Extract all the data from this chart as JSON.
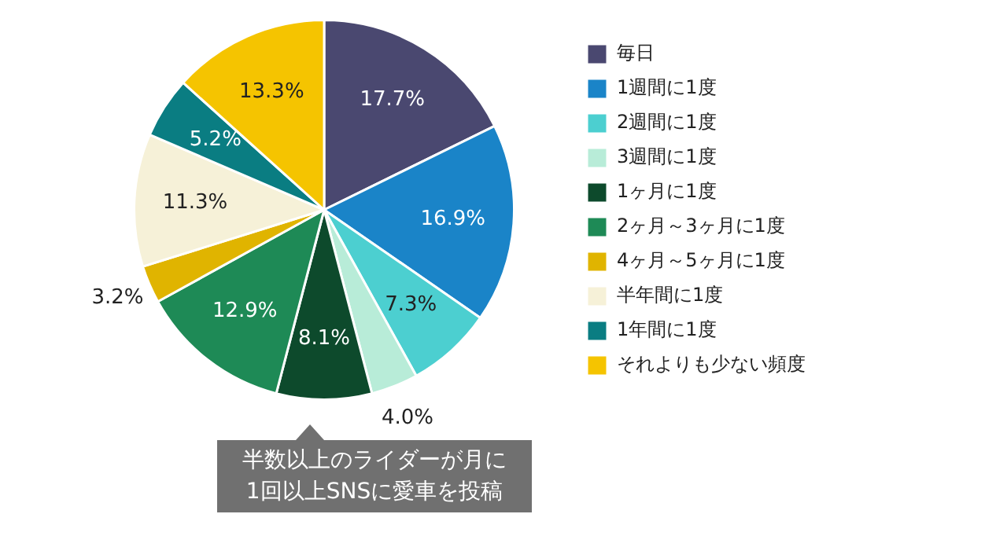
{
  "chart_data": {
    "type": "pie",
    "categories": [
      "毎日",
      "1週間に1度",
      "2週間に1度",
      "3週間に1度",
      "1ヶ月に1度",
      "2ヶ月～3ヶ月に1度",
      "4ヶ月～5ヶ月に1度",
      "半年間に1度",
      "1年間に1度",
      "それよりも少ない頻度"
    ],
    "values": [
      17.7,
      16.9,
      7.3,
      4.0,
      8.1,
      12.9,
      3.2,
      11.3,
      5.2,
      13.3
    ],
    "value_labels": [
      "17.7%",
      "16.9%",
      "7.3%",
      "4.0%",
      "8.1%",
      "12.9%",
      "3.2%",
      "11.3%",
      "5.2%",
      "13.3%"
    ],
    "colors": [
      "#4a4870",
      "#1a84c8",
      "#4ccfd0",
      "#b8ecd8",
      "#0d4a2c",
      "#1e8a56",
      "#e0b400",
      "#f6f1d8",
      "#0a7d82",
      "#f5c400"
    ],
    "legend": "right",
    "annotations": [
      "半数以上のライダーが月に\n1回以上SNSに愛車を投稿"
    ]
  }
}
